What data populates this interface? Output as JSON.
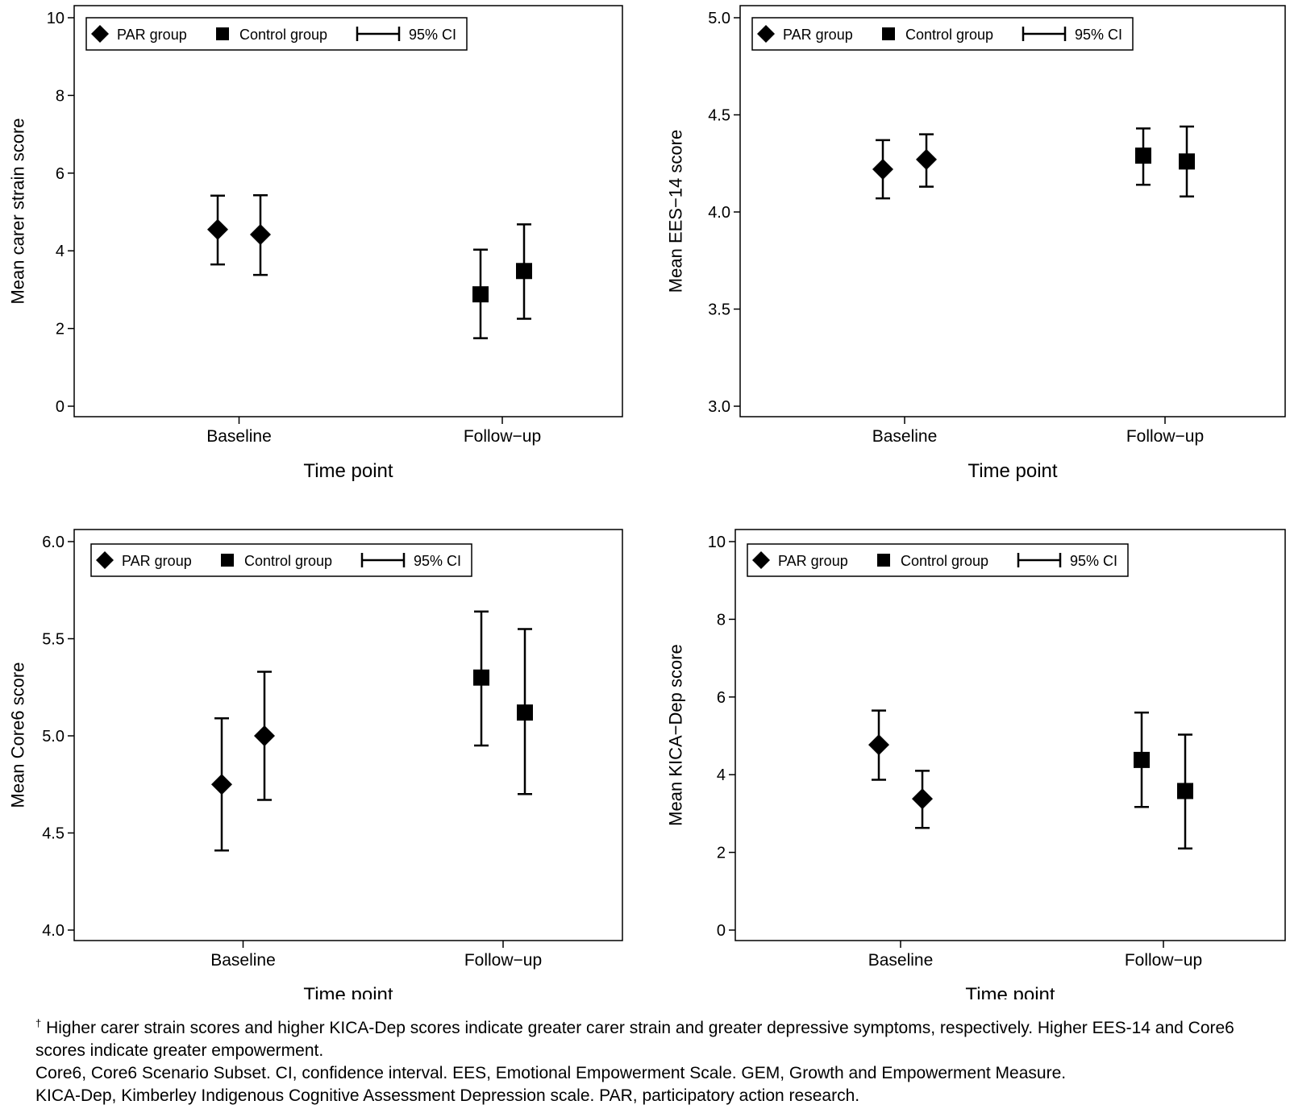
{
  "colors": {
    "ink": "#000000",
    "background": "#ffffff"
  },
  "legend": {
    "par": "PAR group",
    "control": "Control group",
    "ci": "95% CI"
  },
  "chart_data": [
    {
      "type": "scatter",
      "title": "",
      "xlabel": "Time point",
      "ylabel": "Mean carer strain score",
      "categories": [
        "Baseline",
        "Follow−up"
      ],
      "ylim": [
        0,
        10
      ],
      "yticks": [
        "0",
        "2",
        "4",
        "6",
        "8",
        "10"
      ],
      "series": [
        {
          "name": "PAR group",
          "marker": "diamond",
          "values": [
            4.55,
            4.42
          ],
          "ci_low": [
            3.65,
            3.38
          ],
          "ci_high": [
            5.42,
            5.43
          ]
        },
        {
          "name": "Control group",
          "marker": "square",
          "values": [
            2.88,
            3.48
          ],
          "ci_low": [
            1.75,
            2.25
          ],
          "ci_high": [
            4.03,
            4.68
          ]
        }
      ]
    },
    {
      "type": "scatter",
      "title": "",
      "xlabel": "Time point",
      "ylabel": "Mean EES−14 score",
      "categories": [
        "Baseline",
        "Follow−up"
      ],
      "ylim": [
        3.0,
        5.0
      ],
      "yticks": [
        "3.0",
        "3.5",
        "4.0",
        "4.5",
        "5.0"
      ],
      "series": [
        {
          "name": "PAR group",
          "marker": "diamond",
          "values": [
            4.22,
            4.27
          ],
          "ci_low": [
            4.07,
            4.13
          ],
          "ci_high": [
            4.37,
            4.4
          ]
        },
        {
          "name": "Control group",
          "marker": "square",
          "values": [
            4.29,
            4.26
          ],
          "ci_low": [
            4.14,
            4.08
          ],
          "ci_high": [
            4.43,
            4.44
          ]
        }
      ]
    },
    {
      "type": "scatter",
      "title": "",
      "xlabel": "Time point",
      "ylabel": "Mean Core6 score",
      "categories": [
        "Baseline",
        "Follow−up"
      ],
      "ylim": [
        4.0,
        6.0
      ],
      "yticks": [
        "4.0",
        "4.5",
        "5.0",
        "5.5",
        "6.0"
      ],
      "series": [
        {
          "name": "PAR group",
          "marker": "diamond",
          "values": [
            4.75,
            5.0
          ],
          "ci_low": [
            4.41,
            4.67
          ],
          "ci_high": [
            5.09,
            5.33
          ]
        },
        {
          "name": "Control group",
          "marker": "square",
          "values": [
            5.3,
            5.12
          ],
          "ci_low": [
            4.95,
            4.7
          ],
          "ci_high": [
            5.64,
            5.55
          ]
        }
      ]
    },
    {
      "type": "scatter",
      "title": "",
      "xlabel": "Time point",
      "ylabel": "Mean KICA−Dep score",
      "categories": [
        "Baseline",
        "Follow−up"
      ],
      "ylim": [
        0,
        10
      ],
      "yticks": [
        "0",
        "2",
        "4",
        "6",
        "8",
        "10"
      ],
      "series": [
        {
          "name": "PAR group",
          "marker": "diamond",
          "values": [
            4.77,
            3.38
          ],
          "ci_low": [
            3.87,
            2.63
          ],
          "ci_high": [
            5.65,
            4.1
          ]
        },
        {
          "name": "Control group",
          "marker": "square",
          "values": [
            4.38,
            3.58
          ],
          "ci_low": [
            3.17,
            2.1
          ],
          "ci_high": [
            5.6,
            5.03
          ]
        }
      ]
    }
  ],
  "footnote": {
    "dagger": "†",
    "line1": "Higher carer strain scores and higher KICA-Dep scores indicate greater carer strain and greater depressive symptoms, respectively. Higher EES-14 and Core6 scores indicate greater empowerment.",
    "line2": "Core6, Core6 Scenario Subset. CI, confidence interval. EES, Emotional Empowerment Scale. GEM, Growth and Empowerment Measure.",
    "line3": "KICA-Dep, Kimberley Indigenous Cognitive Assessment Depression scale. PAR, participatory action research."
  }
}
